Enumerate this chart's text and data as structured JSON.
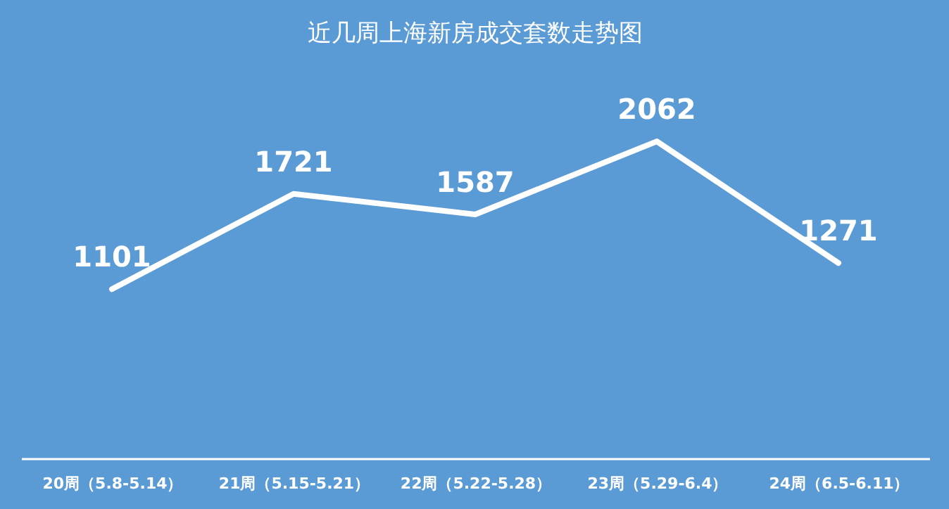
{
  "chart_data": {
    "type": "line",
    "title": "近几周上海新房成交套数走势图",
    "categories": [
      "20周（5.8-5.14）",
      "21周（5.15-5.21）",
      "22周（5.22-5.28）",
      "23周（5.29-6.4）",
      "24周（6.5-6.11）"
    ],
    "series": [
      {
        "color": "#ffffff",
        "values": [
          1101,
          1721,
          1587,
          2062,
          1271
        ]
      }
    ],
    "data_labels": true,
    "legend": false,
    "grid": false,
    "marker": "none",
    "line_style": "solid"
  }
}
